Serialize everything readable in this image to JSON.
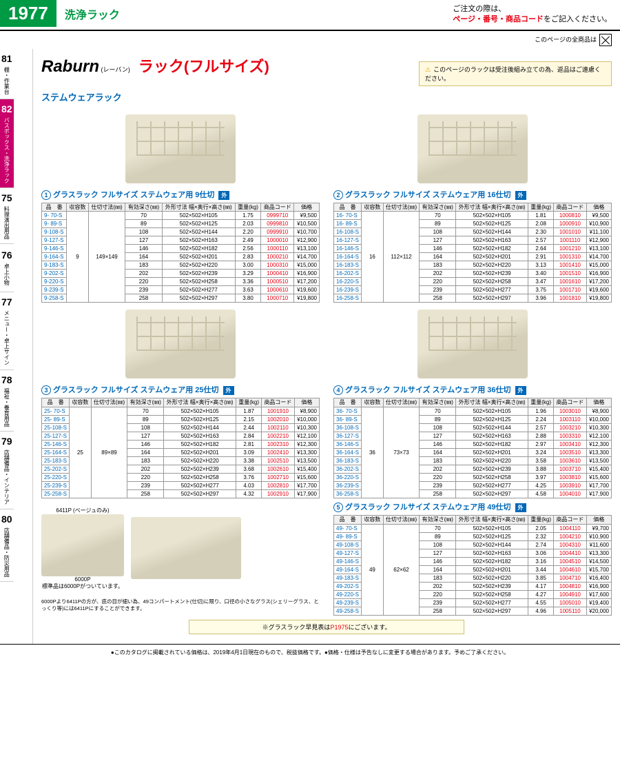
{
  "header": {
    "page_num": "1977",
    "title": "洗浄ラック",
    "order_note_pre": "ご注文の際は、",
    "order_note_red": "ページ・番号・商品コード",
    "order_note_post": "をご記入ください。",
    "all_items_note": "このページの全商品は"
  },
  "sidebar": [
    {
      "num": "81",
      "label": "棚・作業台"
    },
    {
      "num": "82",
      "label": "バスボックス・洗浄ラック",
      "active": true
    },
    {
      "num": "75",
      "label": "料理演出用品"
    },
    {
      "num": "76",
      "label": "卓上小物"
    },
    {
      "num": "77",
      "label": "メニュー・卓上サイン"
    },
    {
      "num": "78",
      "label": "福祉・養育用品"
    },
    {
      "num": "79",
      "label": "店舗備品・インテリア"
    },
    {
      "num": "80",
      "label": "店舗備品・防災用品"
    }
  ],
  "brand": {
    "logo": "Raburn",
    "sub": "(レーバン)",
    "title": "ラック(フルサイズ)",
    "warning": "このページのラックは受注後組み立ての為、返品はご遠慮ください。",
    "subtitle": "ステムウェアラック"
  },
  "table_headers": [
    "品　番",
    "収容数",
    "仕切寸法(㎜)",
    "有効深さ(㎜)",
    "外形寸法 幅×奥行×高さ(㎜)",
    "重量(kg)",
    "商品コード",
    "価格"
  ],
  "tables": [
    {
      "num": "1",
      "title": "グラスラック フルサイズ ステムウェア用 9仕切",
      "badge": "外",
      "capacity": "9",
      "partition": "149×149",
      "rows": [
        [
          "9- 70-S",
          "70",
          "502×502×H105",
          "1.75",
          "0999710",
          "¥9,500"
        ],
        [
          "9- 89-S",
          "89",
          "502×502×H125",
          "2.03",
          "0999810",
          "¥10,500"
        ],
        [
          "9-108-S",
          "108",
          "502×502×H144",
          "2.20",
          "0999910",
          "¥10,700"
        ],
        [
          "9-127-S",
          "127",
          "502×502×H163",
          "2.49",
          "1000010",
          "¥12,900"
        ],
        [
          "9-146-S",
          "146",
          "502×502×H182",
          "2.56",
          "1000110",
          "¥13,100"
        ],
        [
          "9-164-S",
          "164",
          "502×502×H201",
          "2.83",
          "1000210",
          "¥14,700"
        ],
        [
          "9-183-S",
          "183",
          "502×502×H220",
          "3.00",
          "1000310",
          "¥15,000"
        ],
        [
          "9-202-S",
          "202",
          "502×502×H239",
          "3.29",
          "1000410",
          "¥16,900"
        ],
        [
          "9-220-S",
          "220",
          "502×502×H258",
          "3.36",
          "1000510",
          "¥17,200"
        ],
        [
          "9-239-S",
          "239",
          "502×502×H277",
          "3.63",
          "1000610",
          "¥19,600"
        ],
        [
          "9-258-S",
          "258",
          "502×502×H297",
          "3.80",
          "1000710",
          "¥19,800"
        ]
      ]
    },
    {
      "num": "2",
      "title": "グラスラック フルサイズ ステムウェア用 16仕切",
      "badge": "外",
      "capacity": "16",
      "partition": "112×112",
      "rows": [
        [
          "16- 70-S",
          "70",
          "502×502×H105",
          "1.81",
          "1000810",
          "¥9,500"
        ],
        [
          "16- 89-S",
          "89",
          "502×502×H125",
          "2.08",
          "1000910",
          "¥10,900"
        ],
        [
          "16-108-S",
          "108",
          "502×502×H144",
          "2.30",
          "1001010",
          "¥11,100"
        ],
        [
          "16-127-S",
          "127",
          "502×502×H163",
          "2.57",
          "1001110",
          "¥12,900"
        ],
        [
          "16-146-S",
          "146",
          "502×502×H182",
          "2.64",
          "1001210",
          "¥13,100"
        ],
        [
          "16-164-S",
          "164",
          "502×502×H201",
          "2.91",
          "1001310",
          "¥14,700"
        ],
        [
          "16-183-S",
          "183",
          "502×502×H220",
          "3.13",
          "1001410",
          "¥15,000"
        ],
        [
          "16-202-S",
          "202",
          "502×502×H239",
          "3.40",
          "1001510",
          "¥16,900"
        ],
        [
          "16-220-S",
          "220",
          "502×502×H258",
          "3.47",
          "1001610",
          "¥17,200"
        ],
        [
          "16-239-S",
          "239",
          "502×502×H277",
          "3.75",
          "1001710",
          "¥19,600"
        ],
        [
          "16-258-S",
          "258",
          "502×502×H297",
          "3.96",
          "1001810",
          "¥19,800"
        ]
      ]
    },
    {
      "num": "3",
      "title": "グラスラック フルサイズ ステムウェア用 25仕切",
      "badge": "外",
      "capacity": "25",
      "partition": "89×89",
      "rows": [
        [
          "25- 70-S",
          "70",
          "502×502×H105",
          "1.87",
          "1001910",
          "¥8,900"
        ],
        [
          "25- 89-S",
          "89",
          "502×502×H125",
          "2.15",
          "1002010",
          "¥10,000"
        ],
        [
          "25-108-S",
          "108",
          "502×502×H144",
          "2.44",
          "1002110",
          "¥10,300"
        ],
        [
          "25-127-S",
          "127",
          "502×502×H163",
          "2.84",
          "1002210",
          "¥12,100"
        ],
        [
          "25-146-S",
          "146",
          "502×502×H182",
          "2.81",
          "1002310",
          "¥12,300"
        ],
        [
          "25-164-S",
          "164",
          "502×502×H201",
          "3.09",
          "1002410",
          "¥13,300"
        ],
        [
          "25-183-S",
          "183",
          "502×502×H220",
          "3.38",
          "1002510",
          "¥13,500"
        ],
        [
          "25-202-S",
          "202",
          "502×502×H239",
          "3.68",
          "1002610",
          "¥15,400"
        ],
        [
          "25-220-S",
          "220",
          "502×502×H258",
          "3.76",
          "1002710",
          "¥15,600"
        ],
        [
          "25-239-S",
          "239",
          "502×502×H277",
          "4.03",
          "1002810",
          "¥17,700"
        ],
        [
          "25-258-S",
          "258",
          "502×502×H297",
          "4.32",
          "1002910",
          "¥17,900"
        ]
      ]
    },
    {
      "num": "4",
      "title": "グラスラック フルサイズ ステムウェア用 36仕切",
      "badge": "外",
      "capacity": "36",
      "partition": "73×73",
      "rows": [
        [
          "36- 70-S",
          "70",
          "502×502×H105",
          "1.96",
          "1003010",
          "¥8,900"
        ],
        [
          "36- 89-S",
          "89",
          "502×502×H125",
          "2.24",
          "1003110",
          "¥10,000"
        ],
        [
          "36-108-S",
          "108",
          "502×502×H144",
          "2.57",
          "1003210",
          "¥10,300"
        ],
        [
          "36-127-S",
          "127",
          "502×502×H163",
          "2.88",
          "1003310",
          "¥12,100"
        ],
        [
          "36-146-S",
          "146",
          "502×502×H182",
          "2.97",
          "1003410",
          "¥12,300"
        ],
        [
          "36-164-S",
          "164",
          "502×502×H201",
          "3.24",
          "1003510",
          "¥13,300"
        ],
        [
          "36-183-S",
          "183",
          "502×502×H220",
          "3.58",
          "1003610",
          "¥13,500"
        ],
        [
          "36-202-S",
          "202",
          "502×502×H239",
          "3.88",
          "1003710",
          "¥15,400"
        ],
        [
          "36-220-S",
          "220",
          "502×502×H258",
          "3.97",
          "1003810",
          "¥15,600"
        ],
        [
          "36-239-S",
          "239",
          "502×502×H277",
          "4.25",
          "1003910",
          "¥17,700"
        ],
        [
          "36-258-S",
          "258",
          "502×502×H297",
          "4.58",
          "1004010",
          "¥17,900"
        ]
      ]
    },
    {
      "num": "5",
      "title": "グラスラック フルサイズ ステムウェア用 49仕切",
      "badge": "外",
      "capacity": "49",
      "partition": "62×62",
      "rows": [
        [
          "49- 70-S",
          "70",
          "502×502×H105",
          "2.05",
          "1004110",
          "¥9,700"
        ],
        [
          "49- 89-S",
          "89",
          "502×502×H125",
          "2.32",
          "1004210",
          "¥10,900"
        ],
        [
          "49-108-S",
          "108",
          "502×502×H144",
          "2.74",
          "1004310",
          "¥11,600"
        ],
        [
          "49-127-S",
          "127",
          "502×502×H163",
          "3.06",
          "1004410",
          "¥13,300"
        ],
        [
          "49-146-S",
          "146",
          "502×502×H182",
          "3.16",
          "1004510",
          "¥14,500"
        ],
        [
          "49-164-S",
          "164",
          "502×502×H201",
          "3.44",
          "1004610",
          "¥15,700"
        ],
        [
          "49-183-S",
          "183",
          "502×502×H220",
          "3.85",
          "1004710",
          "¥16,400"
        ],
        [
          "49-202-S",
          "202",
          "502×502×H239",
          "4.17",
          "1004810",
          "¥16,900"
        ],
        [
          "49-220-S",
          "220",
          "502×502×H258",
          "4.27",
          "1004910",
          "¥17,600"
        ],
        [
          "49-239-S",
          "239",
          "502×502×H277",
          "4.55",
          "1005010",
          "¥19,400"
        ],
        [
          "49-258-S",
          "258",
          "502×502×H297",
          "4.96",
          "1005110",
          "¥20,000"
        ]
      ]
    }
  ],
  "img_section": {
    "label1": "6411P",
    "label1_sub": "(ベージュのみ)",
    "label2": "6000P",
    "label2_sub": "標準品は6000Pがついています。",
    "note": "6000Pより6411Pの方が、底の目が細い為、49コンパートメント(仕切)に限り、口径の小さなグラス(シェリーグラス、とっくり等)には6411Pにすることができます。"
  },
  "footnote": {
    "pre": "※グラスラック早見表は",
    "red": "P1975",
    "post": "にございます。"
  },
  "footer": "●このカタログに掲載されている価格は、2019年4月1日現在のもので、税抜価格です。●価格・仕様は予告なしに変更する場合があります。予めご了承ください。"
}
